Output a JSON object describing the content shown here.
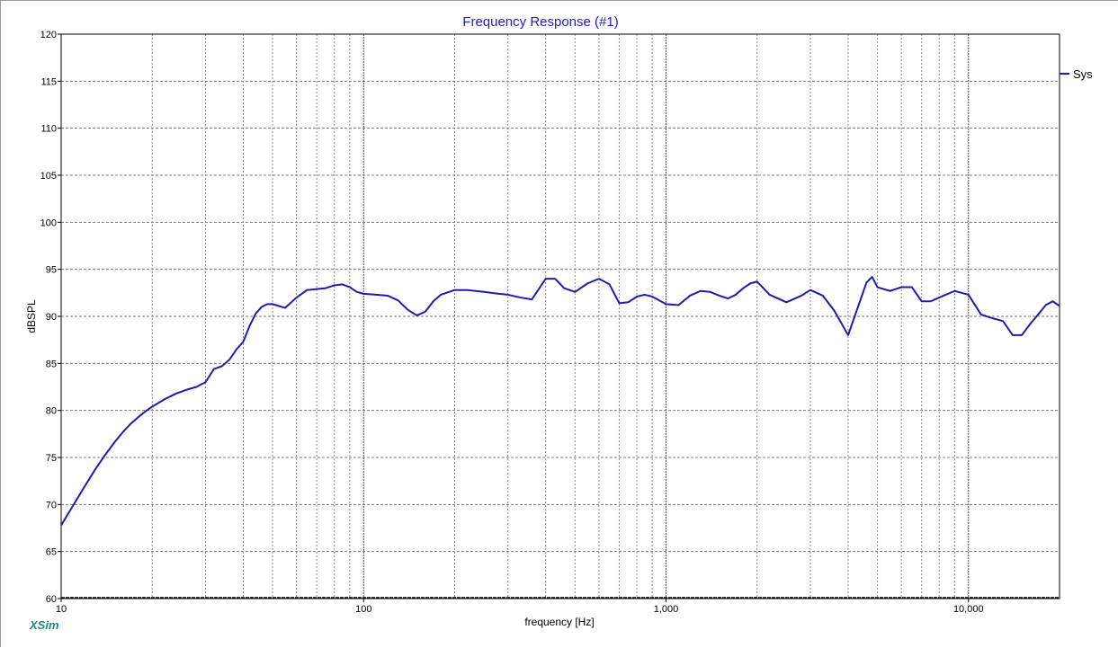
{
  "chart_data": {
    "type": "line",
    "title": "Frequency Response (#1)",
    "xlabel": "frequency [Hz]",
    "ylabel": "dBSPL",
    "x_scale": "log",
    "xlim": [
      10,
      20000
    ],
    "ylim": [
      60,
      120
    ],
    "y_ticks": [
      "60",
      "65",
      "70",
      "75",
      "80",
      "85",
      "90",
      "95",
      "100",
      "105",
      "110",
      "115",
      "120"
    ],
    "x_ticks": [
      {
        "value": 10,
        "label": "10"
      },
      {
        "value": 100,
        "label": "100"
      },
      {
        "value": 1000,
        "label": "1,000"
      },
      {
        "value": 10000,
        "label": "10,000"
      }
    ],
    "grid": true,
    "legend_position": "right",
    "series": [
      {
        "name": "Sys",
        "color": "#1c1cb4",
        "x": [
          10,
          11,
          12,
          13,
          14,
          15,
          16,
          17,
          18,
          19,
          20,
          22,
          24,
          26,
          28,
          30,
          32,
          34,
          36,
          38,
          40,
          42,
          44,
          46,
          48,
          50,
          55,
          60,
          65,
          70,
          75,
          80,
          85,
          90,
          95,
          100,
          110,
          120,
          130,
          140,
          150,
          160,
          170,
          180,
          200,
          220,
          250,
          280,
          300,
          330,
          360,
          400,
          430,
          460,
          500,
          550,
          600,
          650,
          700,
          750,
          800,
          850,
          900,
          1000,
          1100,
          1200,
          1300,
          1400,
          1500,
          1600,
          1700,
          1800,
          1900,
          2000,
          2200,
          2500,
          2800,
          3000,
          3300,
          3600,
          4000,
          4300,
          4600,
          4800,
          5000,
          5500,
          6000,
          6500,
          7000,
          7500,
          8000,
          9000,
          10000,
          11000,
          12000,
          13000,
          14000,
          15000,
          16000,
          17000,
          18000,
          19000,
          20000
        ],
        "y": [
          67.8,
          70.0,
          72.0,
          73.8,
          75.3,
          76.6,
          77.7,
          78.6,
          79.3,
          79.9,
          80.4,
          81.2,
          81.8,
          82.2,
          82.5,
          83.0,
          84.4,
          84.7,
          85.4,
          86.5,
          87.3,
          89.0,
          90.3,
          91.0,
          91.3,
          91.3,
          90.9,
          92.0,
          92.8,
          92.9,
          93.0,
          93.3,
          93.4,
          93.1,
          92.6,
          92.4,
          92.3,
          92.2,
          91.7,
          90.7,
          90.1,
          90.5,
          91.6,
          92.3,
          92.8,
          92.8,
          92.6,
          92.4,
          92.3,
          92.0,
          91.8,
          94.0,
          94.0,
          93.0,
          92.6,
          93.5,
          94.0,
          93.4,
          91.4,
          91.5,
          92.1,
          92.3,
          92.1,
          91.3,
          91.2,
          92.2,
          92.7,
          92.6,
          92.2,
          91.9,
          92.3,
          93.0,
          93.5,
          93.7,
          92.3,
          91.5,
          92.2,
          92.8,
          92.2,
          90.6,
          88.0,
          90.9,
          93.6,
          94.2,
          93.1,
          92.7,
          93.1,
          93.1,
          91.6,
          91.6,
          92.0,
          92.7,
          92.3,
          90.2,
          89.8,
          89.5,
          88.0,
          88.0,
          89.2,
          90.2,
          91.2,
          91.6,
          91.1
        ]
      }
    ]
  },
  "brand": "XSim"
}
